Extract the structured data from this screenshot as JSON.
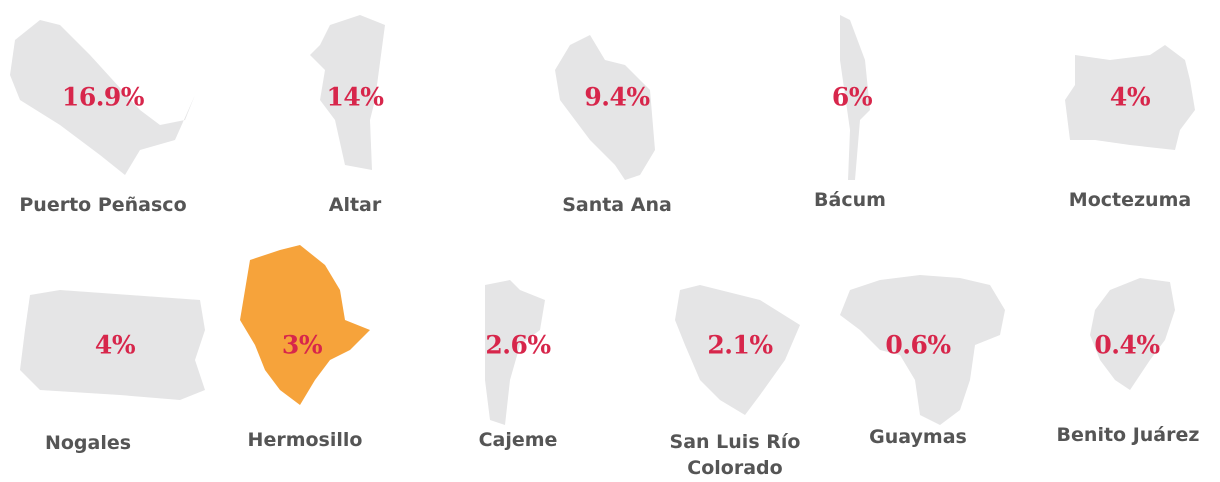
{
  "items": [
    {
      "name": "Puerto Peñasco",
      "value": "16.9%",
      "color": "#e5e5e6"
    },
    {
      "name": "Altar",
      "value": "14%",
      "color": "#e5e5e6"
    },
    {
      "name": "Santa Ana",
      "value": "9.4%",
      "color": "#e5e5e6"
    },
    {
      "name": "Bácum",
      "value": "6%",
      "color": "#e5e5e6"
    },
    {
      "name": "Moctezuma",
      "value": "4%",
      "color": "#e5e5e6"
    },
    {
      "name": "Nogales",
      "value": "4%",
      "color": "#e5e5e6"
    },
    {
      "name": "Hermosillo",
      "value": "3%",
      "color": "#f6a33b"
    },
    {
      "name": "Cajeme",
      "value": "2.6%",
      "color": "#e5e5e6"
    },
    {
      "name": "San Luis Río Colorado",
      "value": "2.1%",
      "color": "#e5e5e6"
    },
    {
      "name": "Guaymas",
      "value": "0.6%",
      "color": "#e5e5e6"
    },
    {
      "name": "Benito Juárez",
      "value": "0.4%",
      "color": "#e5e5e6"
    }
  ]
}
